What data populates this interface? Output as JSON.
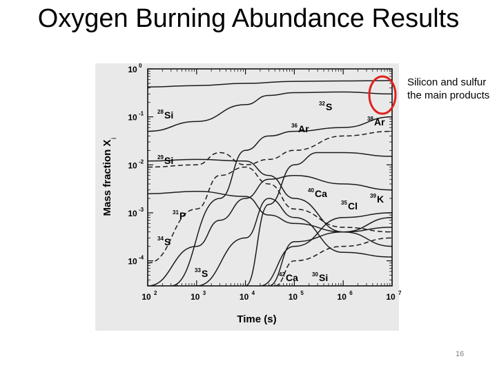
{
  "slide": {
    "title": "Oxygen Burning Abundance Results",
    "annotation": "Silicon and sulfur the main products",
    "page_number": "16"
  },
  "chart_data": {
    "type": "line",
    "xlabel": "Time (s)",
    "ylabel_main": "Mass fraction X",
    "ylabel_sub": "i",
    "xscale": "log",
    "yscale": "log",
    "xlim": [
      100,
      10000000
    ],
    "ylim": [
      3e-05,
      1
    ],
    "x_tick_labels": [
      {
        "base": "10",
        "exp": "2"
      },
      {
        "base": "10",
        "exp": "3"
      },
      {
        "base": "10",
        "exp": "4"
      },
      {
        "base": "10",
        "exp": "5"
      },
      {
        "base": "10",
        "exp": "6"
      },
      {
        "base": "10",
        "exp": "7"
      }
    ],
    "y_tick_labels": [
      {
        "base": "10",
        "exp": "0"
      },
      {
        "base": "10",
        "exp": "-1"
      },
      {
        "base": "10",
        "exp": "-2"
      },
      {
        "base": "10",
        "exp": "-3"
      },
      {
        "base": "10",
        "exp": "-4"
      }
    ],
    "series": [
      {
        "name": "32S",
        "mass": "32",
        "el": "S",
        "dash": false,
        "points": [
          [
            100,
            0.42
          ],
          [
            1000,
            0.45
          ],
          [
            10000,
            0.5
          ],
          [
            100000,
            0.55
          ],
          [
            1000000,
            0.56
          ],
          [
            10000000,
            0.57
          ]
        ]
      },
      {
        "name": "28Si",
        "mass": "28",
        "el": "Si",
        "dash": false,
        "points": [
          [
            100,
            0.05
          ],
          [
            1000,
            0.08
          ],
          [
            10000,
            0.18
          ],
          [
            30000,
            0.28
          ],
          [
            100000,
            0.32
          ],
          [
            1000000,
            0.33
          ],
          [
            10000000,
            0.3
          ]
        ]
      },
      {
        "name": "36Ar",
        "mass": "36",
        "el": "Ar",
        "dash": false,
        "points": [
          [
            300,
            3e-05
          ],
          [
            3000,
            0.002
          ],
          [
            10000,
            0.02
          ],
          [
            30000,
            0.04
          ],
          [
            100000,
            0.05
          ],
          [
            1000000,
            0.06
          ],
          [
            10000000,
            0.1
          ]
        ]
      },
      {
        "name": "38Ar",
        "mass": "38",
        "el": "Ar",
        "dash": true,
        "points": [
          [
            100,
            0.009
          ],
          [
            1000,
            0.01
          ],
          [
            3000,
            0.018
          ],
          [
            10000,
            0.01
          ],
          [
            30000,
            0.013
          ],
          [
            100000,
            0.02
          ],
          [
            1000000,
            0.04
          ],
          [
            10000000,
            0.05
          ]
        ]
      },
      {
        "name": "29Si",
        "mass": "29",
        "el": "Si",
        "dash": false,
        "points": [
          [
            100,
            0.012
          ],
          [
            1000,
            0.013
          ],
          [
            10000,
            0.012
          ],
          [
            30000,
            0.006
          ],
          [
            100000,
            0.002
          ],
          [
            1000000,
            0.0004
          ],
          [
            10000000,
            0.0002
          ]
        ]
      },
      {
        "name": "30Si",
        "mass": "30",
        "el": "Si",
        "dash": false,
        "points": [
          [
            100,
            0.0025
          ],
          [
            1000,
            0.0028
          ],
          [
            10000,
            0.0022
          ],
          [
            30000,
            0.0009
          ],
          [
            100000,
            0.0006
          ],
          [
            1000000,
            0.0004
          ],
          [
            10000000,
            0.0005
          ]
        ]
      },
      {
        "name": "40Ca",
        "mass": "40",
        "el": "Ca",
        "dash": false,
        "points": [
          [
            10000,
            3e-05
          ],
          [
            30000,
            0.0015
          ],
          [
            100000,
            0.01
          ],
          [
            300000,
            0.018
          ],
          [
            1000000,
            0.018
          ],
          [
            10000000,
            0.015
          ]
        ]
      },
      {
        "name": "34S",
        "mass": "34",
        "el": "S",
        "dash": false,
        "points": [
          [
            100,
            3e-05
          ],
          [
            1000,
            0.0002
          ],
          [
            3000,
            0.0007
          ],
          [
            10000,
            0.002
          ],
          [
            30000,
            0.005
          ],
          [
            100000,
            0.006
          ],
          [
            1000000,
            0.004
          ],
          [
            10000000,
            0.003
          ]
        ]
      },
      {
        "name": "33S",
        "mass": "33",
        "el": "S",
        "dash": true,
        "points": [
          [
            100,
            9e-05
          ],
          [
            1000,
            0.0012
          ],
          [
            3000,
            0.006
          ],
          [
            10000,
            0.009
          ],
          [
            30000,
            0.004
          ],
          [
            100000,
            0.0012
          ],
          [
            1000000,
            0.0005
          ],
          [
            10000000,
            0.0004
          ]
        ]
      },
      {
        "name": "31P",
        "mass": "31",
        "el": "P",
        "dash": false,
        "points": [
          [
            1000,
            3e-05
          ],
          [
            10000,
            0.0003
          ],
          [
            30000,
            0.002
          ],
          [
            100000,
            0.0008
          ],
          [
            1000000,
            0.00015
          ],
          [
            10000000,
            0.00012
          ]
        ]
      },
      {
        "name": "35Cl",
        "mass": "35",
        "el": "Cl",
        "dash": false,
        "points": [
          [
            20000,
            3e-05
          ],
          [
            100000,
            0.0002
          ],
          [
            1000000,
            0.0008
          ],
          [
            10000000,
            0.001
          ]
        ]
      },
      {
        "name": "39K",
        "mass": "39",
        "el": "K",
        "dash": false,
        "points": [
          [
            30000,
            3e-05
          ],
          [
            100000,
            0.00025
          ],
          [
            1000000,
            0.0004
          ],
          [
            10000000,
            0.0008
          ]
        ]
      },
      {
        "name": "42Ca",
        "mass": "42",
        "el": "Ca",
        "dash": true,
        "points": [
          [
            40000,
            3e-05
          ],
          [
            100000,
            0.0001
          ],
          [
            1000000,
            0.0002
          ],
          [
            10000000,
            0.0003
          ]
        ]
      }
    ]
  }
}
